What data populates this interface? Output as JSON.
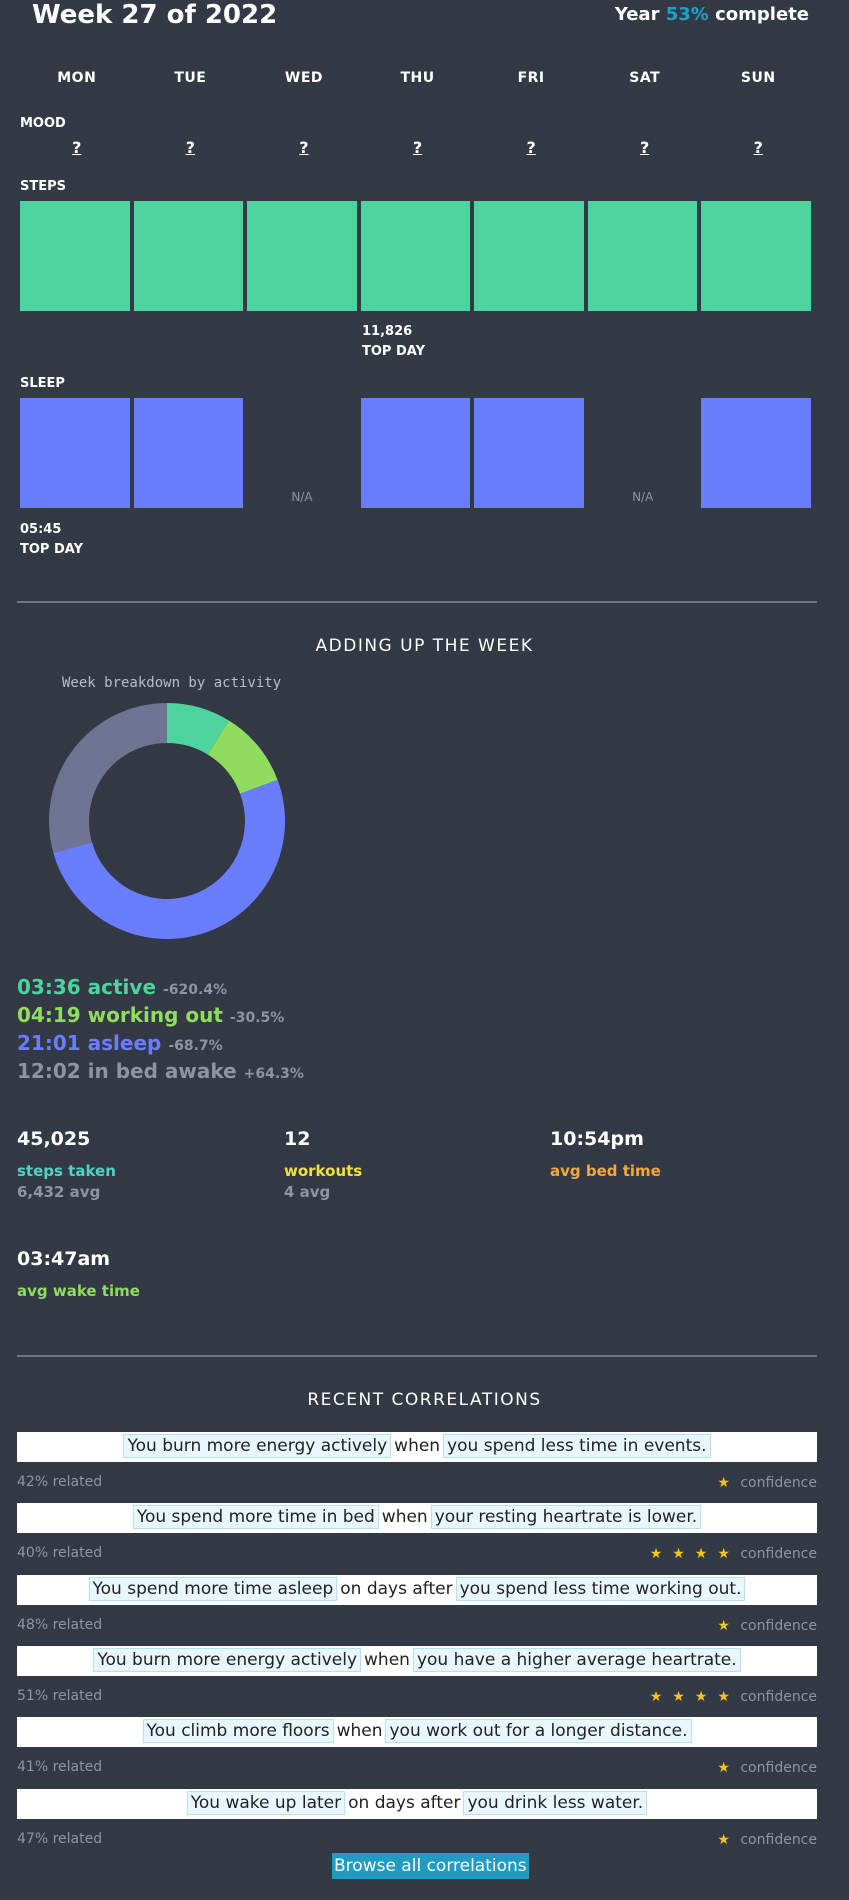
{
  "header": {
    "title": "Week 27 of 2022",
    "year_prefix": "Year",
    "year_pct": "53%",
    "year_suffix": "complete"
  },
  "days": [
    "MON",
    "TUE",
    "WED",
    "THU",
    "FRI",
    "SAT",
    "SUN"
  ],
  "mood": {
    "label": "MOOD",
    "values": [
      "?",
      "?",
      "?",
      "?",
      "?",
      "?",
      "?"
    ]
  },
  "steps": {
    "label": "STEPS",
    "top_value": "11,826",
    "top_label": "TOP DAY"
  },
  "sleep": {
    "label": "SLEEP",
    "na": "N/A",
    "top_value": "05:45",
    "top_label": "TOP DAY"
  },
  "adding_up": {
    "title": "ADDING UP THE WEEK",
    "donut_title": "Week breakdown by activity"
  },
  "chart_data": {
    "type": "pie",
    "title": "Week breakdown by activity",
    "categories": [
      "active",
      "working out",
      "asleep",
      "in bed awake"
    ],
    "values": [
      3.6,
      4.32,
      21.02,
      12.03
    ],
    "colors": [
      "#4ed39e",
      "#8fdc5e",
      "#6b7dff",
      "#6e7592"
    ]
  },
  "activities": [
    {
      "time": "03:36",
      "name": "active",
      "delta": "-620.4%",
      "color": "#4ed39e"
    },
    {
      "time": "04:19",
      "name": "working out",
      "delta": "-30.5%",
      "color": "#8fdc5e"
    },
    {
      "time": "21:01",
      "name": "asleep",
      "delta": "-68.7%",
      "color": "#6b7dff"
    },
    {
      "time": "12:02",
      "name": "in bed awake",
      "delta": "+64.3%",
      "color": "#8e94a1"
    }
  ],
  "stats": [
    {
      "value": "45,025",
      "label": "steps taken",
      "avg": "6,432 avg",
      "color": "#4ed3c4"
    },
    {
      "value": "12",
      "label": "workouts",
      "avg": "4 avg",
      "color": "#f0e23a"
    },
    {
      "value": "10:54pm",
      "label": "avg bed time",
      "avg": "",
      "color": "#f5a83a"
    },
    {
      "value": "03:47am",
      "label": "avg wake time",
      "avg": "",
      "color": "#8fdc5e"
    }
  ],
  "correlations": {
    "title": "RECENT CORRELATIONS",
    "confidence_label": "confidence",
    "items": [
      {
        "a": "You burn more energy actively",
        "link": "when",
        "b": "you spend less time in events.",
        "related": "42% related",
        "stars": 1
      },
      {
        "a": "You spend more time in bed",
        "link": "when",
        "b": "your resting heartrate is lower.",
        "related": "40% related",
        "stars": 4
      },
      {
        "a": "You spend more time asleep",
        "link": "on days after",
        "b": "you spend less time working out.",
        "related": "48% related",
        "stars": 1
      },
      {
        "a": "You burn more energy actively",
        "link": "when",
        "b": "you have a higher average heartrate.",
        "related": "51% related",
        "stars": 4
      },
      {
        "a": "You climb more floors",
        "link": "when",
        "b": "you work out for a longer distance.",
        "related": "41% related",
        "stars": 1
      },
      {
        "a": "You wake up later",
        "link": "on days after",
        "b": "you drink less water.",
        "related": "47% related",
        "stars": 1
      }
    ],
    "browse_label": "Browse all correlations"
  }
}
